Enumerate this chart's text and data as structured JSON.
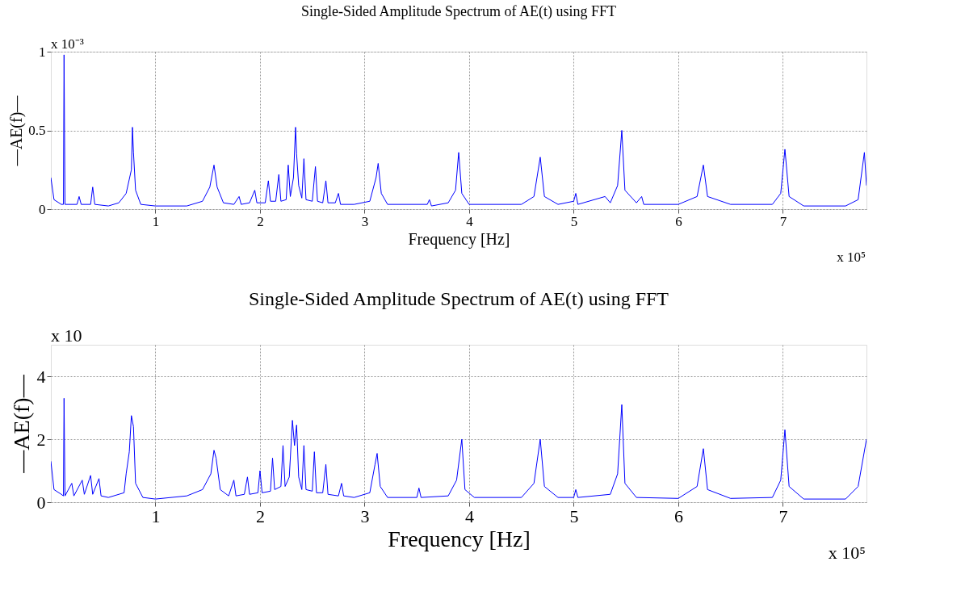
{
  "chart_data": [
    {
      "type": "line",
      "title": "Single-Sided Amplitude Spectrum of AE(t) using FFT",
      "xlabel": "Frequency [Hz]",
      "ylabel": "—AE(f)—",
      "annotations": [
        "x 10⁻³",
        "x 10⁵"
      ],
      "xlim": [
        0,
        7.8
      ],
      "xticks": [
        1,
        2,
        3,
        4,
        5,
        6,
        7
      ],
      "ylim": [
        0,
        1
      ],
      "yticks": [
        0,
        0.5,
        1
      ],
      "grid": true,
      "series": [
        {
          "color": "#0000ff",
          "x": [
            0,
            0.03,
            0.1,
            0.12,
            0.126,
            0.135,
            0.25,
            0.27,
            0.29,
            0.38,
            0.4,
            0.42,
            0.55,
            0.65,
            0.72,
            0.77,
            0.78,
            0.79,
            0.81,
            0.86,
            1.0,
            1.3,
            1.45,
            1.52,
            1.56,
            1.59,
            1.65,
            1.75,
            1.8,
            1.82,
            1.9,
            1.95,
            1.97,
            2.05,
            2.08,
            2.1,
            2.15,
            2.18,
            2.2,
            2.25,
            2.27,
            2.29,
            2.32,
            2.34,
            2.35,
            2.37,
            2.4,
            2.42,
            2.44,
            2.5,
            2.53,
            2.55,
            2.6,
            2.63,
            2.65,
            2.72,
            2.75,
            2.77,
            2.9,
            3.05,
            3.11,
            3.13,
            3.16,
            3.22,
            3.6,
            3.62,
            3.64,
            3.8,
            3.87,
            3.9,
            3.93,
            4.0,
            4.5,
            4.62,
            4.68,
            4.72,
            4.85,
            5.0,
            5.02,
            5.04,
            5.3,
            5.35,
            5.42,
            5.46,
            5.49,
            5.6,
            5.65,
            5.67,
            6.0,
            6.18,
            6.24,
            6.28,
            6.5,
            6.9,
            6.98,
            7.02,
            7.06,
            7.2,
            7.6,
            7.72,
            7.78,
            7.8
          ],
          "values": [
            0.2,
            0.06,
            0.03,
            0.03,
            0.98,
            0.03,
            0.03,
            0.08,
            0.03,
            0.03,
            0.14,
            0.03,
            0.02,
            0.04,
            0.1,
            0.25,
            0.52,
            0.36,
            0.12,
            0.03,
            0.02,
            0.02,
            0.05,
            0.14,
            0.28,
            0.14,
            0.04,
            0.03,
            0.08,
            0.03,
            0.04,
            0.12,
            0.04,
            0.04,
            0.18,
            0.05,
            0.05,
            0.22,
            0.05,
            0.06,
            0.28,
            0.08,
            0.2,
            0.52,
            0.35,
            0.15,
            0.07,
            0.32,
            0.06,
            0.05,
            0.27,
            0.05,
            0.04,
            0.18,
            0.04,
            0.04,
            0.1,
            0.03,
            0.03,
            0.05,
            0.2,
            0.29,
            0.1,
            0.03,
            0.03,
            0.06,
            0.02,
            0.04,
            0.12,
            0.36,
            0.1,
            0.03,
            0.03,
            0.08,
            0.33,
            0.08,
            0.03,
            0.05,
            0.1,
            0.03,
            0.08,
            0.04,
            0.15,
            0.5,
            0.12,
            0.04,
            0.08,
            0.03,
            0.03,
            0.08,
            0.28,
            0.08,
            0.03,
            0.03,
            0.1,
            0.38,
            0.08,
            0.02,
            0.02,
            0.06,
            0.36,
            0.15
          ]
        }
      ]
    },
    {
      "type": "line",
      "title": "Single-Sided Amplitude Spectrum of AE(t) using FFT",
      "xlabel": "Frequency [Hz]",
      "ylabel": "—AE(f)—",
      "annotations": [
        "x 10",
        "x 10⁵"
      ],
      "xlim": [
        0,
        7.8
      ],
      "xticks": [
        1,
        2,
        3,
        4,
        5,
        6,
        7
      ],
      "ylim": [
        0,
        5
      ],
      "yticks": [
        0,
        2,
        4
      ],
      "grid": true,
      "series": [
        {
          "color": "#0000ff",
          "x": [
            0,
            0.03,
            0.1,
            0.12,
            0.126,
            0.135,
            0.2,
            0.22,
            0.3,
            0.32,
            0.38,
            0.4,
            0.46,
            0.48,
            0.55,
            0.7,
            0.72,
            0.75,
            0.77,
            0.79,
            0.81,
            0.88,
            1.0,
            1.3,
            1.45,
            1.53,
            1.56,
            1.58,
            1.62,
            1.7,
            1.75,
            1.77,
            1.85,
            1.88,
            1.9,
            1.98,
            2.0,
            2.02,
            2.1,
            2.12,
            2.14,
            2.2,
            2.22,
            2.24,
            2.28,
            2.31,
            2.33,
            2.35,
            2.37,
            2.4,
            2.42,
            2.44,
            2.5,
            2.52,
            2.54,
            2.6,
            2.63,
            2.65,
            2.75,
            2.78,
            2.8,
            2.9,
            3.05,
            3.1,
            3.12,
            3.15,
            3.22,
            3.5,
            3.52,
            3.54,
            3.8,
            3.88,
            3.93,
            3.96,
            4.05,
            4.5,
            4.62,
            4.68,
            4.72,
            4.85,
            5.0,
            5.02,
            5.04,
            5.35,
            5.42,
            5.46,
            5.49,
            5.6,
            6.0,
            6.18,
            6.24,
            6.28,
            6.5,
            6.9,
            6.98,
            7.02,
            7.06,
            7.2,
            7.6,
            7.72,
            7.8
          ],
          "values": [
            1.3,
            0.4,
            0.25,
            0.2,
            3.3,
            0.2,
            0.6,
            0.2,
            0.7,
            0.25,
            0.85,
            0.25,
            0.75,
            0.2,
            0.15,
            0.3,
            0.9,
            1.6,
            2.75,
            2.4,
            0.6,
            0.15,
            0.1,
            0.2,
            0.4,
            0.9,
            1.65,
            1.4,
            0.4,
            0.2,
            0.7,
            0.2,
            0.25,
            0.8,
            0.25,
            0.3,
            1.0,
            0.3,
            0.35,
            1.4,
            0.4,
            0.5,
            1.8,
            0.5,
            0.8,
            2.6,
            1.8,
            2.45,
            0.8,
            0.4,
            1.8,
            0.4,
            0.35,
            1.6,
            0.3,
            0.3,
            1.2,
            0.25,
            0.2,
            0.6,
            0.2,
            0.15,
            0.3,
            1.2,
            1.55,
            0.5,
            0.15,
            0.15,
            0.45,
            0.15,
            0.2,
            0.7,
            2.0,
            0.4,
            0.15,
            0.15,
            0.6,
            2.0,
            0.5,
            0.15,
            0.15,
            0.4,
            0.15,
            0.25,
            0.9,
            3.1,
            0.6,
            0.15,
            0.12,
            0.5,
            1.7,
            0.4,
            0.12,
            0.15,
            0.7,
            2.3,
            0.5,
            0.1,
            0.1,
            0.5,
            2.0
          ]
        }
      ]
    }
  ]
}
